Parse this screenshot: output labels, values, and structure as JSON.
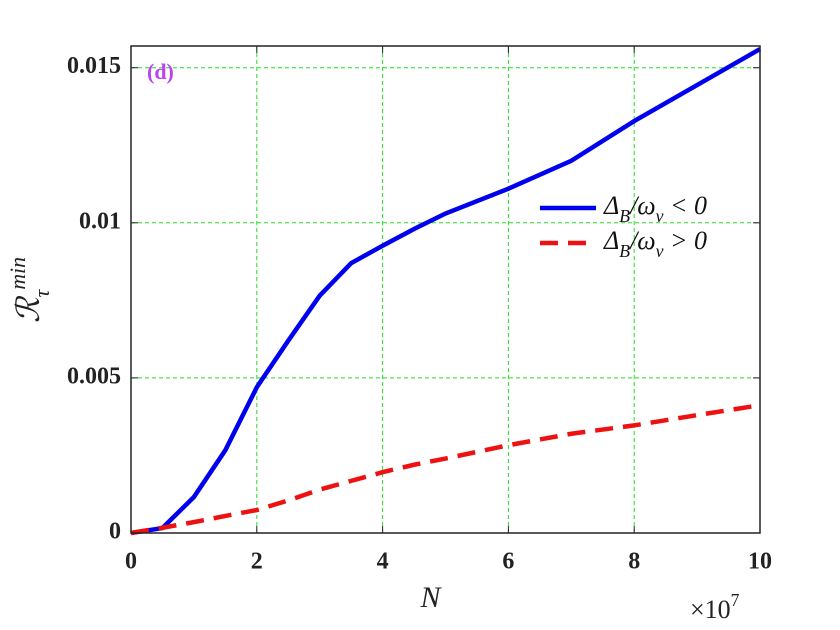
{
  "chart_data": {
    "type": "line",
    "annotation": "(d)",
    "x_label": "N",
    "y_label": "ℛ_τ^min",
    "x_multiplier": "×10^7",
    "x": [
      0,
      0.5,
      1,
      1.5,
      2,
      2.5,
      3,
      3.5,
      4,
      4.5,
      5,
      6,
      7,
      8,
      9,
      10
    ],
    "series": [
      {
        "name": "Δ_B/ω_ν < 0",
        "color": "#0000ee",
        "dashed": false,
        "values": [
          0,
          0.00016,
          0.00116,
          0.00267,
          0.0047,
          0.0062,
          0.00765,
          0.0087,
          0.00926,
          0.0098,
          0.0103,
          0.0111,
          0.012,
          0.01328,
          0.01444,
          0.0156
        ]
      },
      {
        "name": "Δ_B/ω_ν > 0",
        "color": "#ee1111",
        "dashed": true,
        "values": [
          0,
          0.00017,
          0.00035,
          0.00055,
          0.00074,
          0.00105,
          0.0014,
          0.00168,
          0.00196,
          0.0022,
          0.0024,
          0.00283,
          0.0032,
          0.00347,
          0.0038,
          0.00412
        ]
      }
    ],
    "xlim": [
      0,
      10
    ],
    "xticks": [
      0,
      2,
      4,
      6,
      8,
      10
    ],
    "ylim": [
      0,
      0.0157
    ],
    "yticks": [
      0,
      0.005,
      0.01,
      0.015
    ],
    "grid": true,
    "grid_color": "#22dd22",
    "legend": "right"
  }
}
